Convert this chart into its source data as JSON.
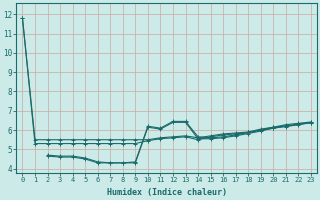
{
  "xlabel": "Humidex (Indice chaleur)",
  "background_color": "#cceae8",
  "grid_color": "#b8d0ce",
  "line_color": "#1a6b6b",
  "xlim": [
    -0.5,
    23.5
  ],
  "ylim": [
    3.8,
    12.6
  ],
  "yticks": [
    4,
    5,
    6,
    7,
    8,
    9,
    10,
    11,
    12
  ],
  "xticks": [
    0,
    1,
    2,
    3,
    4,
    5,
    6,
    7,
    8,
    9,
    10,
    11,
    12,
    13,
    14,
    15,
    16,
    17,
    18,
    19,
    20,
    21,
    22,
    23
  ],
  "series1_x": [
    0,
    1,
    2,
    3,
    4,
    5,
    6,
    7,
    8,
    9,
    10,
    11,
    12,
    13,
    14,
    15,
    16,
    17,
    18,
    19,
    20,
    21,
    22,
    23
  ],
  "series1_y": [
    11.8,
    5.5,
    5.5,
    5.5,
    5.5,
    5.5,
    5.5,
    5.5,
    5.5,
    5.5,
    5.5,
    5.6,
    5.65,
    5.7,
    5.6,
    5.7,
    5.8,
    5.85,
    5.9,
    6.05,
    6.15,
    6.2,
    6.3,
    6.4
  ],
  "series2_x": [
    0,
    1,
    2,
    3,
    4,
    5,
    6,
    7,
    8,
    9,
    10,
    11,
    12,
    13,
    14,
    15,
    16,
    17,
    18,
    19,
    20,
    21,
    22,
    23
  ],
  "series2_y": [
    11.8,
    5.3,
    5.3,
    5.3,
    5.3,
    5.3,
    5.3,
    5.3,
    5.3,
    5.3,
    5.45,
    5.55,
    5.6,
    5.65,
    5.5,
    5.65,
    5.75,
    5.8,
    5.88,
    6.0,
    6.1,
    6.18,
    6.28,
    6.38
  ],
  "series3_x": [
    2,
    3,
    4,
    5,
    6,
    7,
    8,
    9,
    10,
    11,
    12,
    13,
    14,
    15,
    16,
    17,
    18,
    19,
    20,
    21,
    22,
    23
  ],
  "series3_y": [
    4.7,
    4.65,
    4.65,
    4.55,
    4.35,
    4.3,
    4.3,
    4.35,
    6.2,
    6.1,
    6.45,
    6.45,
    5.65,
    5.6,
    5.65,
    5.75,
    5.88,
    6.0,
    6.15,
    6.28,
    6.35,
    6.42
  ],
  "series4_x": [
    2,
    3,
    4,
    5,
    6,
    7,
    8,
    9,
    10,
    11,
    12,
    13,
    14,
    15,
    16,
    17,
    18,
    19,
    20,
    21,
    22,
    23
  ],
  "series4_y": [
    4.65,
    4.6,
    4.6,
    4.5,
    4.3,
    4.3,
    4.3,
    4.3,
    6.15,
    6.05,
    6.4,
    6.4,
    5.55,
    5.55,
    5.6,
    5.7,
    5.82,
    5.95,
    6.1,
    6.22,
    6.3,
    6.38
  ]
}
